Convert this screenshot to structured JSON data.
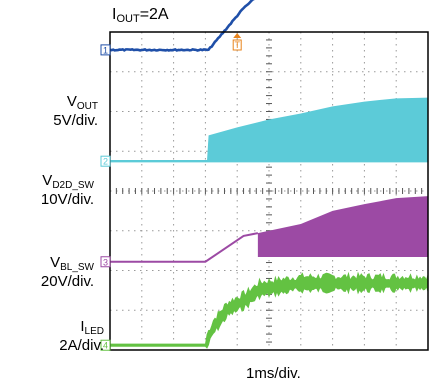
{
  "title": {
    "main": "I",
    "sub": "OUT",
    "tail": "=2A"
  },
  "timebase": "1ms/div.",
  "trigger_marker": "T",
  "colors": {
    "vout": "#1f4fa8",
    "vd2d": "#5ccbd8",
    "vbl": "#9c4aa4",
    "iled": "#63c242",
    "trigger": "#e8841c",
    "grid": "#9a9a9a",
    "frame": "#000000"
  },
  "channels": [
    {
      "id": "vout",
      "name_main": "V",
      "name_sub": "OUT",
      "name_tail": "",
      "scale": "5V/div.",
      "marker": "1"
    },
    {
      "id": "vd2d",
      "name_main": "V",
      "name_sub": "D2D_SW",
      "name_tail": "",
      "scale": "10V/div.",
      "marker": "2"
    },
    {
      "id": "vbl",
      "name_main": "V",
      "name_sub": "BL_SW",
      "name_tail": "",
      "scale": "20V/div.",
      "marker": "3"
    },
    {
      "id": "iled",
      "name_main": "I",
      "name_sub": "LED",
      "name_tail": "",
      "scale": "2A/div.",
      "marker": "4"
    }
  ],
  "chart_data": {
    "type": "line",
    "title": "IOUT=2A",
    "xlabel": "1ms/div.",
    "x_divisions": 10,
    "y_divisions": 8,
    "grid": true,
    "x_unit": "div",
    "y_unit": "div (from channel ground marker, positive up)",
    "series": [
      {
        "name": "VOUT",
        "ground_div": 7.55,
        "points": [
          [
            0,
            0
          ],
          [
            3.1,
            0
          ],
          [
            4.2,
            1.05
          ],
          [
            4.7,
            1.4
          ],
          [
            10,
            1.4
          ]
        ]
      },
      {
        "name": "VD2D_SW",
        "ground_div": 4.75,
        "switching": true,
        "baseline": [
          [
            0,
            0
          ],
          [
            3.05,
            0
          ],
          [
            10,
            0
          ]
        ],
        "envelope": [
          [
            3.05,
            0
          ],
          [
            3.1,
            0.65
          ],
          [
            4,
            0.85
          ],
          [
            5,
            1.05
          ],
          [
            6,
            1.2
          ],
          [
            7,
            1.38
          ],
          [
            8,
            1.5
          ],
          [
            9,
            1.58
          ],
          [
            10,
            1.6
          ]
        ]
      },
      {
        "name": "VBL_SW",
        "ground_div": 2.22,
        "ramp": [
          [
            0,
            0
          ],
          [
            3.0,
            0
          ],
          [
            4.2,
            0.65
          ],
          [
            4.65,
            0.72
          ]
        ],
        "switching": true,
        "envelope_high": [
          [
            4.65,
            0.72
          ],
          [
            6,
            0.95
          ],
          [
            7,
            1.28
          ],
          [
            8,
            1.45
          ],
          [
            9,
            1.6
          ],
          [
            10,
            1.65
          ]
        ],
        "envelope_low": [
          [
            4.65,
            0.12
          ],
          [
            10,
            0.12
          ]
        ]
      },
      {
        "name": "ILED",
        "ground_div": 0.12,
        "points": [
          [
            0,
            0
          ],
          [
            3.0,
            0
          ],
          [
            3.25,
            0.45
          ],
          [
            3.7,
            0.9
          ],
          [
            4.3,
            1.15
          ],
          [
            4.7,
            1.4
          ],
          [
            6,
            1.55
          ],
          [
            10,
            1.55
          ]
        ],
        "noise_div": 0.18
      }
    ]
  }
}
